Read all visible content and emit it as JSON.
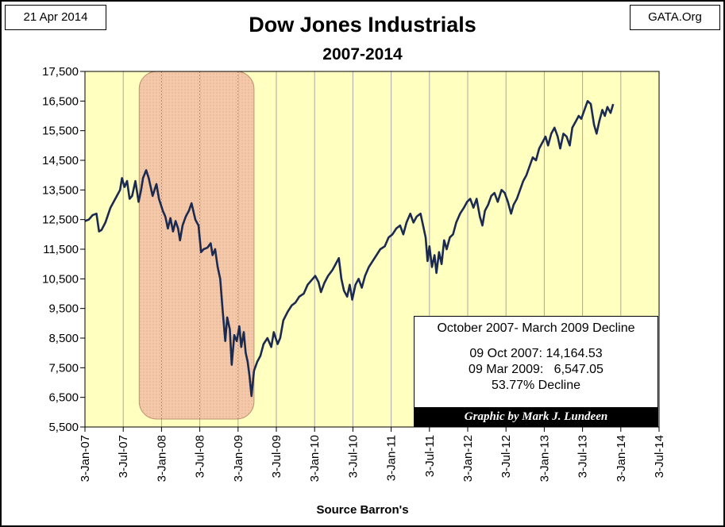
{
  "header": {
    "date": "21 Apr 2014",
    "source_site": "GATA.Org"
  },
  "chart_data": {
    "type": "line",
    "title": "Dow Jones Industrials",
    "subtitle": "2007-2014",
    "xlabel": "Source Barron's",
    "ylabel": "",
    "ylim": [
      5500,
      17500
    ],
    "yticks": [
      5500,
      6500,
      7500,
      8500,
      9500,
      10500,
      11500,
      12500,
      13500,
      14500,
      15500,
      16500,
      17500
    ],
    "ytick_labels": [
      "5,500",
      "6,500",
      "7,500",
      "8,500",
      "9,500",
      "10,500",
      "11,500",
      "12,500",
      "13,500",
      "14,500",
      "15,500",
      "16,500",
      "17,500"
    ],
    "xlim_months": [
      0,
      90
    ],
    "xticks_months": [
      0,
      6,
      12,
      18,
      24,
      30,
      36,
      42,
      48,
      54,
      60,
      66,
      72,
      78,
      84,
      90
    ],
    "xtick_labels": [
      "3-Jan-07",
      "3-Jul-07",
      "3-Jan-08",
      "3-Jul-08",
      "3-Jan-09",
      "3-Jul-09",
      "3-Jan-10",
      "3-Jul-10",
      "3-Jan-11",
      "3-Jul-11",
      "3-Jan-12",
      "3-Jul-12",
      "3-Jan-13",
      "3-Jul-13",
      "3-Jan-14",
      "3-Jul-14"
    ],
    "grid": true,
    "highlight": {
      "from_month": 8.5,
      "to_month": 26.5,
      "color": "#f4c8a8"
    },
    "series": [
      {
        "name": "Dow Jones Industrials",
        "color": "#1b2a50",
        "points": [
          [
            0,
            12450
          ],
          [
            0.6,
            12500
          ],
          [
            1.2,
            12650
          ],
          [
            1.8,
            12700
          ],
          [
            2.2,
            12100
          ],
          [
            2.6,
            12150
          ],
          [
            3.2,
            12400
          ],
          [
            4,
            12900
          ],
          [
            5,
            13300
          ],
          [
            5.5,
            13500
          ],
          [
            5.8,
            13900
          ],
          [
            6.2,
            13600
          ],
          [
            6.6,
            13800
          ],
          [
            7,
            13200
          ],
          [
            7.4,
            13300
          ],
          [
            7.9,
            13800
          ],
          [
            8.4,
            13100
          ],
          [
            8.8,
            13500
          ],
          [
            9.1,
            13900
          ],
          [
            9.6,
            14164
          ],
          [
            10,
            13900
          ],
          [
            10.6,
            13300
          ],
          [
            11.2,
            13700
          ],
          [
            11.6,
            13200
          ],
          [
            12.2,
            12800
          ],
          [
            12.6,
            12600
          ],
          [
            13,
            12200
          ],
          [
            13.4,
            12550
          ],
          [
            13.8,
            12100
          ],
          [
            14.2,
            12450
          ],
          [
            14.6,
            12200
          ],
          [
            14.9,
            11800
          ],
          [
            15.3,
            12300
          ],
          [
            15.8,
            12600
          ],
          [
            16.3,
            12800
          ],
          [
            16.7,
            13050
          ],
          [
            17.3,
            12500
          ],
          [
            17.8,
            12300
          ],
          [
            18.2,
            11400
          ],
          [
            18.6,
            11500
          ],
          [
            19.2,
            11550
          ],
          [
            19.7,
            11700
          ],
          [
            20,
            11300
          ],
          [
            20.4,
            11500
          ],
          [
            20.8,
            10900
          ],
          [
            21.2,
            10500
          ],
          [
            21.6,
            9400
          ],
          [
            22,
            8400
          ],
          [
            22.3,
            9200
          ],
          [
            22.7,
            8800
          ],
          [
            23,
            7600
          ],
          [
            23.4,
            8600
          ],
          [
            23.8,
            8400
          ],
          [
            24.2,
            8900
          ],
          [
            24.5,
            8200
          ],
          [
            24.9,
            8700
          ],
          [
            25.2,
            8000
          ],
          [
            25.5,
            7700
          ],
          [
            25.8,
            7200
          ],
          [
            26.1,
            6547
          ],
          [
            26.5,
            7400
          ],
          [
            27,
            7700
          ],
          [
            27.5,
            7900
          ],
          [
            28,
            8300
          ],
          [
            28.6,
            8500
          ],
          [
            29.2,
            8200
          ],
          [
            29.6,
            8700
          ],
          [
            30.2,
            8300
          ],
          [
            30.6,
            8500
          ],
          [
            31.1,
            9100
          ],
          [
            31.8,
            9400
          ],
          [
            32.4,
            9600
          ],
          [
            33,
            9700
          ],
          [
            33.6,
            9900
          ],
          [
            34.3,
            10000
          ],
          [
            34.9,
            10300
          ],
          [
            35.5,
            10450
          ],
          [
            36.1,
            10600
          ],
          [
            36.6,
            10400
          ],
          [
            37,
            10050
          ],
          [
            37.5,
            10350
          ],
          [
            38.1,
            10600
          ],
          [
            38.8,
            10800
          ],
          [
            39.3,
            11000
          ],
          [
            39.8,
            11200
          ],
          [
            40.2,
            10500
          ],
          [
            40.6,
            10100
          ],
          [
            41.1,
            9900
          ],
          [
            41.5,
            10300
          ],
          [
            41.9,
            9800
          ],
          [
            42.4,
            10300
          ],
          [
            42.9,
            10500
          ],
          [
            43.4,
            10200
          ],
          [
            43.9,
            10600
          ],
          [
            44.5,
            10900
          ],
          [
            45.1,
            11100
          ],
          [
            45.7,
            11300
          ],
          [
            46.3,
            11500
          ],
          [
            47,
            11600
          ],
          [
            47.6,
            11900
          ],
          [
            48.2,
            12000
          ],
          [
            48.8,
            12200
          ],
          [
            49.4,
            12300
          ],
          [
            49.9,
            12000
          ],
          [
            50.4,
            12400
          ],
          [
            51,
            12700
          ],
          [
            51.5,
            12400
          ],
          [
            52,
            12600
          ],
          [
            52.6,
            12700
          ],
          [
            53,
            12300
          ],
          [
            53.4,
            11900
          ],
          [
            53.7,
            11100
          ],
          [
            54,
            11600
          ],
          [
            54.4,
            10900
          ],
          [
            54.8,
            11300
          ],
          [
            55.1,
            10700
          ],
          [
            55.5,
            11400
          ],
          [
            55.9,
            11000
          ],
          [
            56.3,
            11800
          ],
          [
            56.7,
            11500
          ],
          [
            57.2,
            11900
          ],
          [
            57.7,
            12000
          ],
          [
            58.2,
            12400
          ],
          [
            58.8,
            12700
          ],
          [
            59.4,
            12900
          ],
          [
            59.9,
            13100
          ],
          [
            60.4,
            13200
          ],
          [
            60.9,
            12900
          ],
          [
            61.4,
            13200
          ],
          [
            61.9,
            12600
          ],
          [
            62.3,
            12300
          ],
          [
            62.7,
            12800
          ],
          [
            63.2,
            13000
          ],
          [
            63.7,
            13300
          ],
          [
            64.2,
            13400
          ],
          [
            64.7,
            13100
          ],
          [
            65.3,
            13500
          ],
          [
            65.8,
            13400
          ],
          [
            66.3,
            13100
          ],
          [
            66.8,
            12700
          ],
          [
            67.2,
            13000
          ],
          [
            67.7,
            13200
          ],
          [
            68.2,
            13500
          ],
          [
            68.7,
            13800
          ],
          [
            69.2,
            14000
          ],
          [
            69.7,
            14300
          ],
          [
            70.2,
            14600
          ],
          [
            70.7,
            14500
          ],
          [
            71.2,
            14900
          ],
          [
            71.7,
            15100
          ],
          [
            72.2,
            15300
          ],
          [
            72.6,
            15000
          ],
          [
            73.1,
            15400
          ],
          [
            73.6,
            15600
          ],
          [
            74.1,
            15300
          ],
          [
            74.5,
            14900
          ],
          [
            75,
            15400
          ],
          [
            75.5,
            15300
          ],
          [
            76,
            15000
          ],
          [
            76.4,
            15600
          ],
          [
            76.9,
            15800
          ],
          [
            77.4,
            16000
          ],
          [
            77.8,
            15900
          ],
          [
            78.3,
            16200
          ],
          [
            78.8,
            16500
          ],
          [
            79.3,
            16400
          ],
          [
            79.8,
            15700
          ],
          [
            80.2,
            15400
          ],
          [
            80.6,
            15800
          ],
          [
            81.1,
            16200
          ],
          [
            81.5,
            16000
          ],
          [
            81.9,
            16300
          ],
          [
            82.4,
            16100
          ],
          [
            82.8,
            16400
          ]
        ]
      }
    ],
    "annotation": {
      "heading": "October 2007- March 2009 Decline",
      "line1": "09 Oct 2007: 14,164.53",
      "line2": "09 Mar 2009:   6,547.05",
      "line3": "53.77% Decline"
    },
    "credit": "Graphic by Mark J. Lundeen"
  },
  "colors": {
    "plot_bg": "#ffffc0",
    "grid": "#a8a8a8",
    "line": "#1b2a50"
  }
}
